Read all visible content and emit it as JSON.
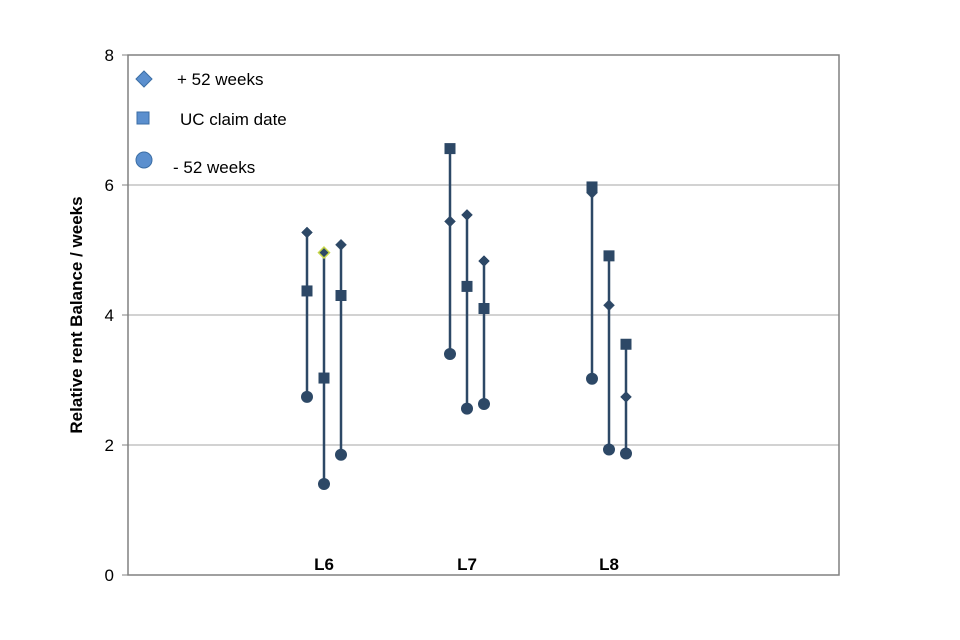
{
  "chart_data": {
    "type": "scatter",
    "title": "",
    "xlabel": "",
    "ylabel": "Relative rent Balance / weeks",
    "ylim": [
      0,
      8
    ],
    "yticks": [
      "0",
      "2",
      "4",
      "6",
      "8"
    ],
    "grid": true,
    "legend_position": "top-left",
    "colors": {
      "marker": "#2d4866",
      "legend_marker": "#5b8fce",
      "line": "#2d4866",
      "highlight": "#c8d84a"
    },
    "legend": [
      {
        "label": "+ 52 weeks",
        "marker": "diamond"
      },
      {
        "label": "UC claim date",
        "marker": "square"
      },
      {
        "label": "- 52 weeks",
        "marker": "circle"
      }
    ],
    "groups": [
      {
        "label": "L6",
        "series": [
          {
            "plus_52": 5.27,
            "uc_claim": 4.37,
            "minus_52": 2.74
          },
          {
            "plus_52": 4.96,
            "uc_claim": 3.03,
            "minus_52": 1.4
          },
          {
            "plus_52": 5.08,
            "uc_claim": 4.3,
            "minus_52": 1.85
          }
        ]
      },
      {
        "label": "L7",
        "series": [
          {
            "plus_52": 5.44,
            "uc_claim": 6.56,
            "minus_52": 3.4
          },
          {
            "plus_52": 5.54,
            "uc_claim": 4.44,
            "minus_52": 2.56
          },
          {
            "plus_52": 4.83,
            "uc_claim": 4.1,
            "minus_52": 2.63
          }
        ]
      },
      {
        "label": "L8",
        "series": [
          {
            "plus_52": 5.88,
            "uc_claim": 5.97,
            "minus_52": 3.02
          },
          {
            "plus_52": 4.15,
            "uc_claim": 4.91,
            "minus_52": 1.93
          },
          {
            "plus_52": 2.74,
            "uc_claim": 3.55,
            "minus_52": 1.87
          }
        ]
      }
    ]
  }
}
